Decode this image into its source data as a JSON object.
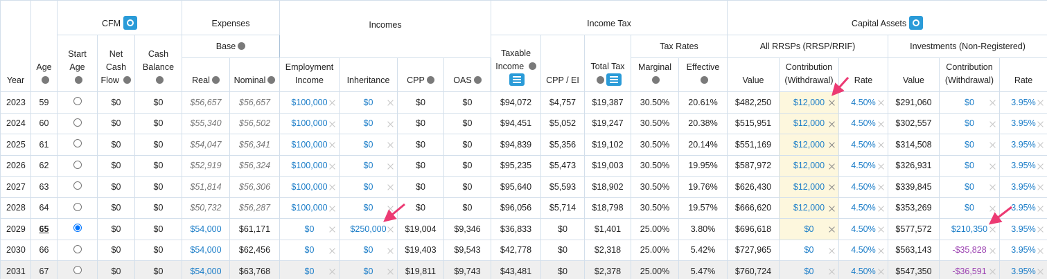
{
  "header": {
    "groups": [
      "CFM",
      "Expenses",
      "Incomes",
      "Income Tax",
      "Capital Assets"
    ],
    "subgroups": [
      "Base",
      "Tax Rates",
      "All RRSPs (RRSP/RRIF)",
      "Investments (Non-Registered)"
    ],
    "columns": [
      "Year",
      "Age",
      "Start Age",
      "Net Cash Flow",
      "Cash Balance",
      "Real",
      "Nominal",
      "Employment Income",
      "Inheritance",
      "CPP",
      "OAS",
      "Taxable Income",
      "CPP / EI",
      "Total Tax",
      "Marginal",
      "Effective",
      "Value",
      "Contribution (Withdrawal)",
      "Rate",
      "Value",
      "Contribution (Withdrawal)",
      "Rate"
    ]
  },
  "table": {
    "rows": [
      [
        "2023",
        "59",
        false,
        "$0",
        "$0",
        "$56,657",
        "$56,657",
        "$100,000",
        "$0",
        "$0",
        "$0",
        "$94,072",
        "$4,757",
        "$19,387",
        "30.50%",
        "20.61%",
        "$482,250",
        "$12,000",
        "4.50%",
        "$291,060",
        "$0",
        "3.95%"
      ],
      [
        "2024",
        "60",
        false,
        "$0",
        "$0",
        "$55,340",
        "$56,502",
        "$100,000",
        "$0",
        "$0",
        "$0",
        "$94,451",
        "$5,052",
        "$19,247",
        "30.50%",
        "20.38%",
        "$515,951",
        "$12,000",
        "4.50%",
        "$302,557",
        "$0",
        "3.95%"
      ],
      [
        "2025",
        "61",
        false,
        "$0",
        "$0",
        "$54,047",
        "$56,341",
        "$100,000",
        "$0",
        "$0",
        "$0",
        "$94,839",
        "$5,356",
        "$19,102",
        "30.50%",
        "20.14%",
        "$551,169",
        "$12,000",
        "4.50%",
        "$314,508",
        "$0",
        "3.95%"
      ],
      [
        "2026",
        "62",
        false,
        "$0",
        "$0",
        "$52,919",
        "$56,324",
        "$100,000",
        "$0",
        "$0",
        "$0",
        "$95,235",
        "$5,473",
        "$19,003",
        "30.50%",
        "19.95%",
        "$587,972",
        "$12,000",
        "4.50%",
        "$326,931",
        "$0",
        "3.95%"
      ],
      [
        "2027",
        "63",
        false,
        "$0",
        "$0",
        "$51,814",
        "$56,306",
        "$100,000",
        "$0",
        "$0",
        "$0",
        "$95,640",
        "$5,593",
        "$18,902",
        "30.50%",
        "19.76%",
        "$626,430",
        "$12,000",
        "4.50%",
        "$339,845",
        "$0",
        "3.95%"
      ],
      [
        "2028",
        "64",
        false,
        "$0",
        "$0",
        "$50,732",
        "$56,287",
        "$100,000",
        "$0",
        "$0",
        "$0",
        "$96,056",
        "$5,714",
        "$18,798",
        "30.50%",
        "19.57%",
        "$666,620",
        "$12,000",
        "4.50%",
        "$353,269",
        "$0",
        "3.95%"
      ],
      [
        "2029",
        "65",
        true,
        "$0",
        "$0",
        "$54,000",
        "$61,171",
        "$0",
        "$250,000",
        "$19,004",
        "$9,346",
        "$36,833",
        "$0",
        "$1,401",
        "25.00%",
        "3.80%",
        "$696,618",
        "$0",
        "4.50%",
        "$577,572",
        "$210,350",
        "3.95%"
      ],
      [
        "2030",
        "66",
        false,
        "$0",
        "$0",
        "$54,000",
        "$62,456",
        "$0",
        "$0",
        "$19,403",
        "$9,543",
        "$42,778",
        "$0",
        "$2,318",
        "25.00%",
        "5.42%",
        "$727,965",
        "$0",
        "4.50%",
        "$563,143",
        "-$35,828",
        "3.95%"
      ],
      [
        "2031",
        "67",
        false,
        "$0",
        "$0",
        "$54,000",
        "$63,768",
        "$0",
        "$0",
        "$19,811",
        "$9,743",
        "$43,481",
        "$0",
        "$2,378",
        "25.00%",
        "5.47%",
        "$760,724",
        "$0",
        "4.50%",
        "$547,350",
        "-$36,591",
        "3.95%"
      ]
    ]
  }
}
